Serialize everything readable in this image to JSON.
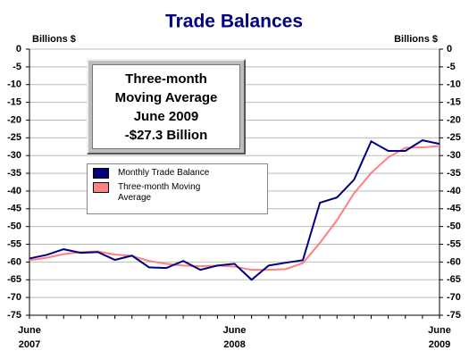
{
  "chart_data": {
    "type": "line",
    "title": "Trade Balances",
    "y_label": "Billions $",
    "y2_label": "Billions $",
    "annotation": [
      "Three-month",
      "Moving Average",
      "June 2009",
      "-$27.3 Billion"
    ],
    "categories": [
      "June 2007",
      null,
      null,
      null,
      null,
      null,
      null,
      null,
      null,
      null,
      null,
      null,
      "June 2008",
      null,
      null,
      null,
      null,
      null,
      null,
      null,
      null,
      null,
      null,
      null,
      "June 2009"
    ],
    "series": [
      {
        "name": "Monthly Trade Balance",
        "color": "#000080",
        "values": [
          -59,
          -58,
          -56.4,
          -57.4,
          -57.2,
          -59.4,
          -58.2,
          -61.5,
          -61.7,
          -59.7,
          -62.2,
          -61,
          -60.5,
          -65,
          -61,
          -60.2,
          -59.5,
          -43.3,
          -41.8,
          -36.8,
          -26,
          -28.7,
          -28.7,
          -25.7,
          -26.7
        ]
      },
      {
        "name": "Three-month Moving Average",
        "color": "#ff8080",
        "values": [
          -59.5,
          -58.8,
          -57.8,
          -57.2,
          -57,
          -57.9,
          -58.3,
          -59.7,
          -60.5,
          -61,
          -61.2,
          -61,
          -61.3,
          -62.2,
          -62.2,
          -62,
          -60.3,
          -54.6,
          -48.2,
          -40.6,
          -34.9,
          -30.5,
          -27.8,
          -27.7,
          -27.3
        ]
      }
    ],
    "ylim": [
      -75,
      0
    ],
    "yticks": [
      0,
      -5,
      -10,
      -15,
      -20,
      -25,
      -30,
      -35,
      -40,
      -45,
      -50,
      -55,
      -60,
      -65,
      -70,
      -75
    ],
    "y2lim": [
      -75,
      0
    ],
    "y2ticks": [
      0,
      -5,
      -10,
      -15,
      -20,
      -25,
      -30,
      -35,
      -40,
      -45,
      -50,
      -55,
      -60,
      -65,
      -70,
      -75
    ],
    "grid": true
  }
}
